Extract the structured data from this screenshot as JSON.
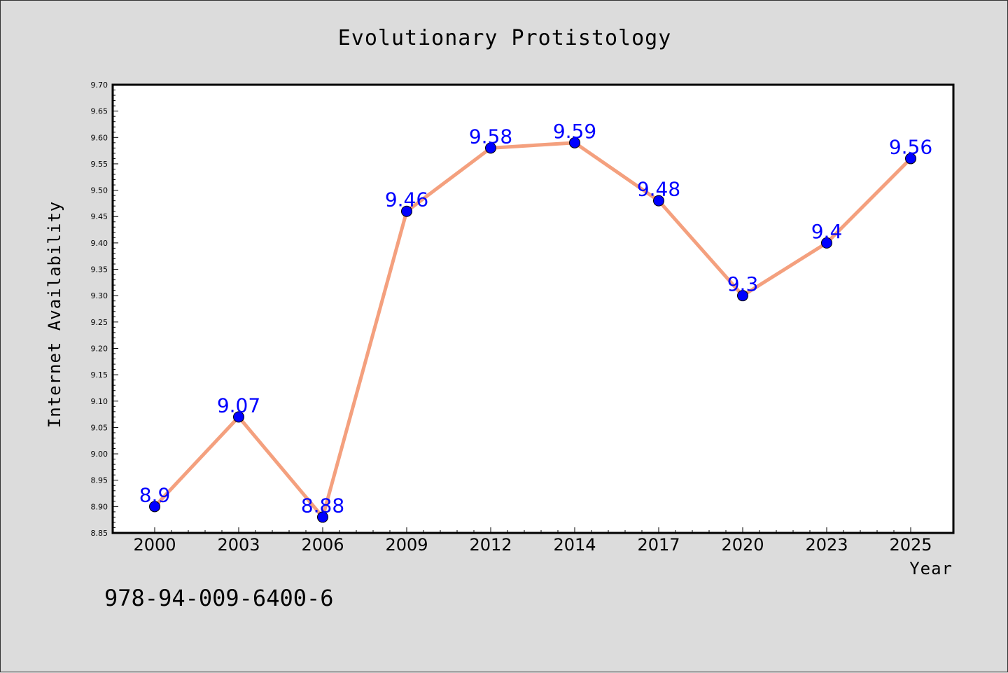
{
  "chart_data": {
    "type": "line",
    "title": "Evolutionary Protistology",
    "xlabel": "Year",
    "ylabel": "Internet Availability",
    "categories": [
      "2000",
      "2003",
      "2006",
      "2009",
      "2012",
      "2014",
      "2017",
      "2020",
      "2023",
      "2025"
    ],
    "series": [
      {
        "values": [
          8.9,
          9.07,
          8.88,
          9.46,
          9.58,
          9.59,
          9.48,
          9.3,
          9.4,
          9.56
        ],
        "data_labels": [
          "8.9",
          "9.07",
          "8.88",
          "9.46",
          "9.58",
          "9.59",
          "9.48",
          "9.3",
          "9.4",
          "9.56"
        ],
        "line_color": "#f4a07e",
        "marker_color": "#0000ff"
      }
    ],
    "ylim": [
      8.85,
      9.7
    ],
    "yticks": [
      "8.85",
      "8.90",
      "8.95",
      "9.00",
      "9.05",
      "9.10",
      "9.15",
      "9.20",
      "9.25",
      "9.30",
      "9.35",
      "9.40",
      "9.45",
      "9.50",
      "9.55",
      "9.60",
      "9.65",
      "9.70"
    ],
    "grid": false,
    "legend": "none"
  },
  "annotation": "978-94-009-6400-6",
  "colors": {
    "background": "#dcdcdc",
    "plot_background": "#ffffff",
    "line": "#f4a07e",
    "marker": "#0000ff",
    "data_label": "#0000ff"
  }
}
